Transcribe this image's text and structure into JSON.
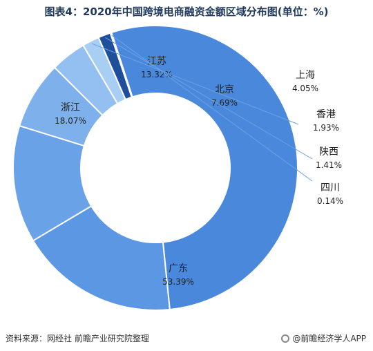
{
  "title": "图表4：2020年中国跨境电商融资金额区域分布图(单位：%)",
  "footer": {
    "source": "资料来源：网经社 前瞻产业研究院整理",
    "brand": "@前瞻经济学人APP",
    "brand_icon": "brand-logo-icon"
  },
  "colors": {
    "广东": "#4a88db",
    "浙江": "#5b97e2",
    "江苏": "#6aa2e7",
    "北京": "#7eb0ec",
    "上海": "#94bff1",
    "香港": "#a9cef4",
    "陕西": "#1f4e9a",
    "四川": "#c4ddf7"
  },
  "chart_data": {
    "type": "pie",
    "donut": true,
    "title": "图表4：2020年中国跨境电商融资金额区域分布图(单位：%)",
    "categories": [
      "广东",
      "浙江",
      "江苏",
      "北京",
      "上海",
      "香港",
      "陕西",
      "四川"
    ],
    "values": [
      53.39,
      18.07,
      13.32,
      7.69,
      4.05,
      1.93,
      1.41,
      0.14
    ],
    "value_labels": [
      "53.39%",
      "18.07%",
      "13.32%",
      "7.69%",
      "4.05%",
      "1.93%",
      "1.41%",
      "0.14%"
    ],
    "legend": "none"
  }
}
